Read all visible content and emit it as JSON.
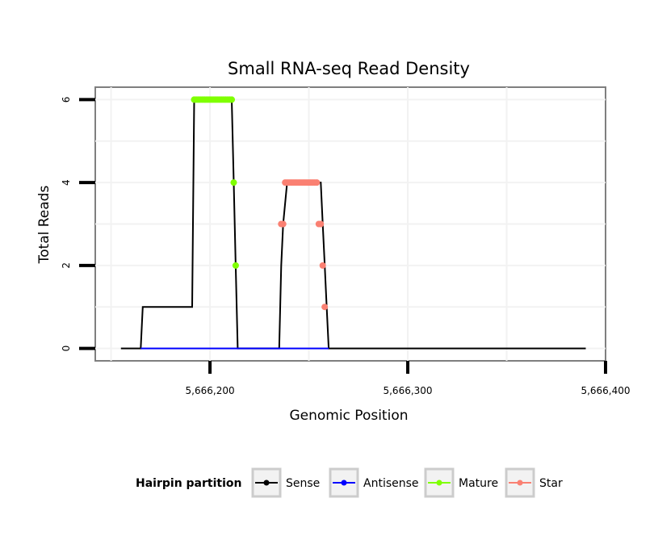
{
  "chart_data": {
    "type": "line",
    "title": "Small RNA-seq Read Density",
    "xlabel": "Genomic Position",
    "ylabel": "Total Reads",
    "xlim": [
      5666142,
      5666400
    ],
    "ylim": [
      -0.3,
      6.3
    ],
    "x_ticks": [
      5666200,
      5666300,
      5666400
    ],
    "x_tick_labels": [
      "5,666,200",
      "5,666,300",
      "5,666,400"
    ],
    "y_ticks": [
      0,
      2,
      4,
      6
    ],
    "y_tick_labels": [
      "0",
      "2",
      "4",
      "6"
    ],
    "grid": true,
    "series": [
      {
        "name": "Sense",
        "color": "#000000",
        "points": [
          [
            5666155,
            0
          ],
          [
            5666165,
            0
          ],
          [
            5666166,
            1
          ],
          [
            5666180,
            1
          ],
          [
            5666191,
            1
          ],
          [
            5666192,
            6
          ],
          [
            5666211,
            6
          ],
          [
            5666212,
            4
          ],
          [
            5666213,
            2
          ],
          [
            5666214,
            0
          ],
          [
            5666235,
            0
          ],
          [
            5666236,
            2
          ],
          [
            5666237,
            3
          ],
          [
            5666239,
            4
          ],
          [
            5666256,
            4
          ],
          [
            5666257,
            3
          ],
          [
            5666258,
            2
          ],
          [
            5666259,
            1
          ],
          [
            5666260,
            0
          ],
          [
            5666300,
            0
          ],
          [
            5666390,
            0
          ]
        ]
      },
      {
        "name": "Antisense",
        "color": "#0000ff",
        "points": [
          [
            5666165,
            0
          ],
          [
            5666260,
            0
          ]
        ]
      },
      {
        "name": "Mature",
        "color": "#7fff00",
        "points": [
          [
            5666192,
            6
          ],
          [
            5666193,
            6
          ],
          [
            5666194,
            6
          ],
          [
            5666195,
            6
          ],
          [
            5666196,
            6
          ],
          [
            5666197,
            6
          ],
          [
            5666198,
            6
          ],
          [
            5666199,
            6
          ],
          [
            5666200,
            6
          ],
          [
            5666201,
            6
          ],
          [
            5666202,
            6
          ],
          [
            5666203,
            6
          ],
          [
            5666204,
            6
          ],
          [
            5666205,
            6
          ],
          [
            5666206,
            6
          ],
          [
            5666207,
            6
          ],
          [
            5666208,
            6
          ],
          [
            5666209,
            6
          ],
          [
            5666210,
            6
          ],
          [
            5666211,
            6
          ],
          [
            5666212,
            4
          ],
          [
            5666213,
            2
          ]
        ]
      },
      {
        "name": "Star",
        "color": "#fa8072",
        "points": [
          [
            5666236,
            3
          ],
          [
            5666237,
            3
          ],
          [
            5666238,
            4
          ],
          [
            5666239,
            4
          ],
          [
            5666240,
            4
          ],
          [
            5666241,
            4
          ],
          [
            5666242,
            4
          ],
          [
            5666243,
            4
          ],
          [
            5666244,
            4
          ],
          [
            5666245,
            4
          ],
          [
            5666246,
            4
          ],
          [
            5666247,
            4
          ],
          [
            5666248,
            4
          ],
          [
            5666249,
            4
          ],
          [
            5666250,
            4
          ],
          [
            5666251,
            4
          ],
          [
            5666252,
            4
          ],
          [
            5666253,
            4
          ],
          [
            5666254,
            4
          ],
          [
            5666255,
            3
          ],
          [
            5666256,
            3
          ],
          [
            5666257,
            2
          ],
          [
            5666258,
            1
          ]
        ]
      }
    ],
    "legend": {
      "title": "Hairpin partition",
      "position": "bottom",
      "entries": [
        "Sense",
        "Antisense",
        "Mature",
        "Star"
      ]
    }
  }
}
